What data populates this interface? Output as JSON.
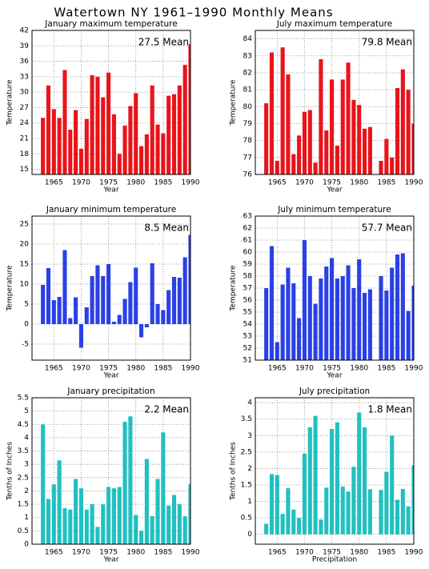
{
  "title": "Watertown NY  1961–1990 Monthly Means",
  "chart_data": [
    {
      "type": "bar",
      "title": "January maximum temperature",
      "annotation": "27.5 Mean",
      "ylabel": "Temperature",
      "xlabel": "Year",
      "color": "#e8141a",
      "x": [
        1963,
        1964,
        1965,
        1966,
        1967,
        1968,
        1969,
        1970,
        1971,
        1972,
        1973,
        1974,
        1975,
        1976,
        1977,
        1978,
        1979,
        1980,
        1981,
        1982,
        1983,
        1984,
        1985,
        1986,
        1987,
        1988,
        1989,
        1990
      ],
      "values": [
        25,
        31.3,
        26.7,
        25,
        34.3,
        22.7,
        26.5,
        19,
        24.8,
        33.3,
        33,
        29,
        33.8,
        25.7,
        18,
        23.5,
        27.3,
        29.8,
        19.5,
        21.8,
        31.3,
        23.7,
        22,
        29.3,
        29.6,
        31.3,
        35.3,
        39.3
      ],
      "xlim": [
        1961,
        1990
      ],
      "ylim": [
        14,
        42
      ],
      "xticks": [
        1965,
        1970,
        1975,
        1980,
        1985,
        1990
      ],
      "yticks": [
        15,
        18,
        21,
        24,
        27,
        30,
        33,
        36,
        39,
        42
      ],
      "grid": true
    },
    {
      "type": "bar",
      "title": "July maximum temperature",
      "annotation": "79.8 Mean",
      "ylabel": "Temperature",
      "xlabel": "Year",
      "color": "#e8141a",
      "x": [
        1963,
        1964,
        1965,
        1966,
        1967,
        1968,
        1969,
        1970,
        1971,
        1972,
        1973,
        1974,
        1975,
        1976,
        1977,
        1978,
        1979,
        1980,
        1981,
        1982,
        1983,
        1984,
        1985,
        1986,
        1987,
        1988,
        1989,
        1990
      ],
      "values": [
        80.2,
        83.2,
        76.8,
        83.5,
        81.9,
        77.2,
        78.3,
        79.7,
        79.8,
        76.7,
        82.8,
        78.6,
        81.6,
        77.7,
        81.6,
        82.6,
        80.4,
        80.1,
        78.7,
        78.8,
        null,
        76.8,
        78.1,
        77,
        81.1,
        82.2,
        81,
        79
      ],
      "xlim": [
        1961,
        1990
      ],
      "ylim": [
        76,
        84.5
      ],
      "xticks": [
        1965,
        1970,
        1975,
        1980,
        1985,
        1990
      ],
      "yticks": [
        76,
        77,
        78,
        79,
        80,
        81,
        82,
        83,
        84
      ],
      "grid": true
    },
    {
      "type": "bar",
      "title": "January minimum temperature",
      "annotation": "8.5 Mean",
      "ylabel": "Temperature",
      "xlabel": "Year",
      "color": "#2a40e6",
      "x": [
        1963,
        1964,
        1965,
        1966,
        1967,
        1968,
        1969,
        1970,
        1971,
        1972,
        1973,
        1974,
        1975,
        1976,
        1977,
        1978,
        1979,
        1980,
        1981,
        1982,
        1983,
        1984,
        1985,
        1986,
        1987,
        1988,
        1989,
        1990
      ],
      "values": [
        9.8,
        14,
        6,
        6.8,
        18.5,
        1.5,
        6.7,
        -5.9,
        4.2,
        12,
        14.7,
        12,
        15,
        0.6,
        2.3,
        6.3,
        10.5,
        14.1,
        -3.3,
        -0.8,
        15.2,
        5,
        3.5,
        8.5,
        11.8,
        11.6,
        16.7,
        22.3
      ],
      "xlim": [
        1961,
        1990
      ],
      "ylim": [
        -9,
        27
      ],
      "xticks": [
        1965,
        1970,
        1975,
        1980,
        1985,
        1990
      ],
      "yticks": [
        -5,
        0,
        5,
        10,
        15,
        20,
        25
      ],
      "grid": true
    },
    {
      "type": "bar",
      "title": "July minimum temperature",
      "annotation": "57.7 Mean",
      "ylabel": "Temperature",
      "xlabel": "Year",
      "color": "#2a40e6",
      "x": [
        1963,
        1964,
        1965,
        1966,
        1967,
        1968,
        1969,
        1970,
        1971,
        1972,
        1973,
        1974,
        1975,
        1976,
        1977,
        1978,
        1979,
        1980,
        1981,
        1982,
        1983,
        1984,
        1985,
        1986,
        1987,
        1988,
        1989,
        1990
      ],
      "values": [
        57,
        60.5,
        52.5,
        57.3,
        58.7,
        57.4,
        54.5,
        61,
        58,
        55.7,
        57.8,
        58.8,
        59.5,
        57.8,
        58,
        58.9,
        57,
        59.4,
        56.6,
        56.9,
        null,
        58,
        56.8,
        58.7,
        59.8,
        59.9,
        55.1,
        57.2
      ],
      "xlim": [
        1961,
        1990
      ],
      "ylim": [
        51,
        63
      ],
      "xticks": [
        1965,
        1970,
        1975,
        1980,
        1985,
        1990
      ],
      "yticks": [
        51,
        52,
        53,
        54,
        55,
        56,
        57,
        58,
        59,
        60,
        61,
        62,
        63
      ],
      "grid": true
    },
    {
      "type": "bar",
      "title": "January precipitation",
      "annotation": "2.2 Mean",
      "ylabel": "Tenths of Inches",
      "xlabel": "Year",
      "color": "#20c0c0",
      "x": [
        1963,
        1964,
        1965,
        1966,
        1967,
        1968,
        1969,
        1970,
        1971,
        1972,
        1973,
        1974,
        1975,
        1976,
        1977,
        1978,
        1979,
        1980,
        1981,
        1982,
        1983,
        1984,
        1985,
        1986,
        1987,
        1988,
        1989,
        1990
      ],
      "values": [
        4.5,
        1.7,
        2.25,
        3.15,
        1.35,
        1.3,
        2.45,
        2.1,
        1.3,
        1.5,
        0.65,
        1.5,
        2.15,
        2.1,
        2.15,
        4.6,
        4.8,
        1.1,
        0.5,
        3.2,
        1.05,
        2.45,
        4.2,
        1.45,
        1.85,
        1.5,
        1.05,
        2.25
      ],
      "xlim": [
        1961,
        1990
      ],
      "ylim": [
        0,
        5.5
      ],
      "xticks": [
        1965,
        1970,
        1975,
        1980,
        1985,
        1990
      ],
      "yticks": [
        0,
        0.5,
        1,
        1.5,
        2,
        2.5,
        3,
        3.5,
        4,
        4.5,
        5,
        5.5
      ],
      "grid": true
    },
    {
      "type": "bar",
      "title": "July precipitation",
      "annotation": "1.8 Mean",
      "ylabel": "Tenths of Inches",
      "xlabel": "Precipitation",
      "color": "#20c0c0",
      "x": [
        1963,
        1964,
        1965,
        1966,
        1967,
        1968,
        1969,
        1970,
        1971,
        1972,
        1973,
        1974,
        1975,
        1976,
        1977,
        1978,
        1979,
        1980,
        1981,
        1982,
        1983,
        1984,
        1985,
        1986,
        1987,
        1988,
        1989,
        1990
      ],
      "values": [
        0.32,
        1.83,
        1.8,
        0.62,
        1.4,
        0.75,
        0.5,
        2.45,
        3.25,
        3.6,
        0.45,
        1.42,
        3.2,
        3.4,
        1.45,
        1.3,
        2.05,
        3.7,
        3.25,
        1.37,
        null,
        1.35,
        1.9,
        3,
        1.05,
        1.38,
        0.85,
        2.1
      ],
      "xlim": [
        1961,
        1990
      ],
      "ylim": [
        -0.3,
        4.15
      ],
      "xticks": [
        1965,
        1970,
        1975,
        1980,
        1985,
        1990
      ],
      "yticks": [
        0,
        0.5,
        1,
        1.5,
        2,
        2.5,
        3,
        3.5,
        4
      ],
      "grid": true
    }
  ]
}
